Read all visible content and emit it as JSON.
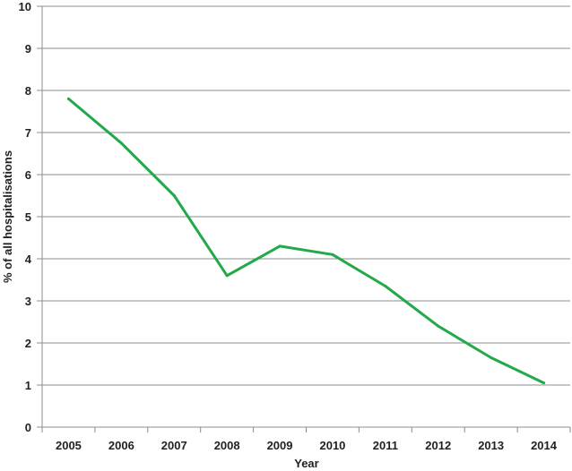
{
  "chart_data": {
    "type": "line",
    "title": "",
    "xlabel": "Year",
    "ylabel": "% of all hospitalisations",
    "ylim": [
      0,
      10
    ],
    "yticks": [
      "0",
      "1",
      "2",
      "3",
      "4",
      "5",
      "6",
      "7",
      "8",
      "9",
      "10"
    ],
    "grid": "horizontal",
    "legend": "none",
    "categories": [
      "2005",
      "2006",
      "2007",
      "2008",
      "2009",
      "2010",
      "2011",
      "2012",
      "2013",
      "2014"
    ],
    "series": [
      {
        "values": [
          7.8,
          6.75,
          5.5,
          3.6,
          4.3,
          4.1,
          3.35,
          2.4,
          1.65,
          1.05
        ],
        "color": "#22a94a"
      }
    ]
  }
}
